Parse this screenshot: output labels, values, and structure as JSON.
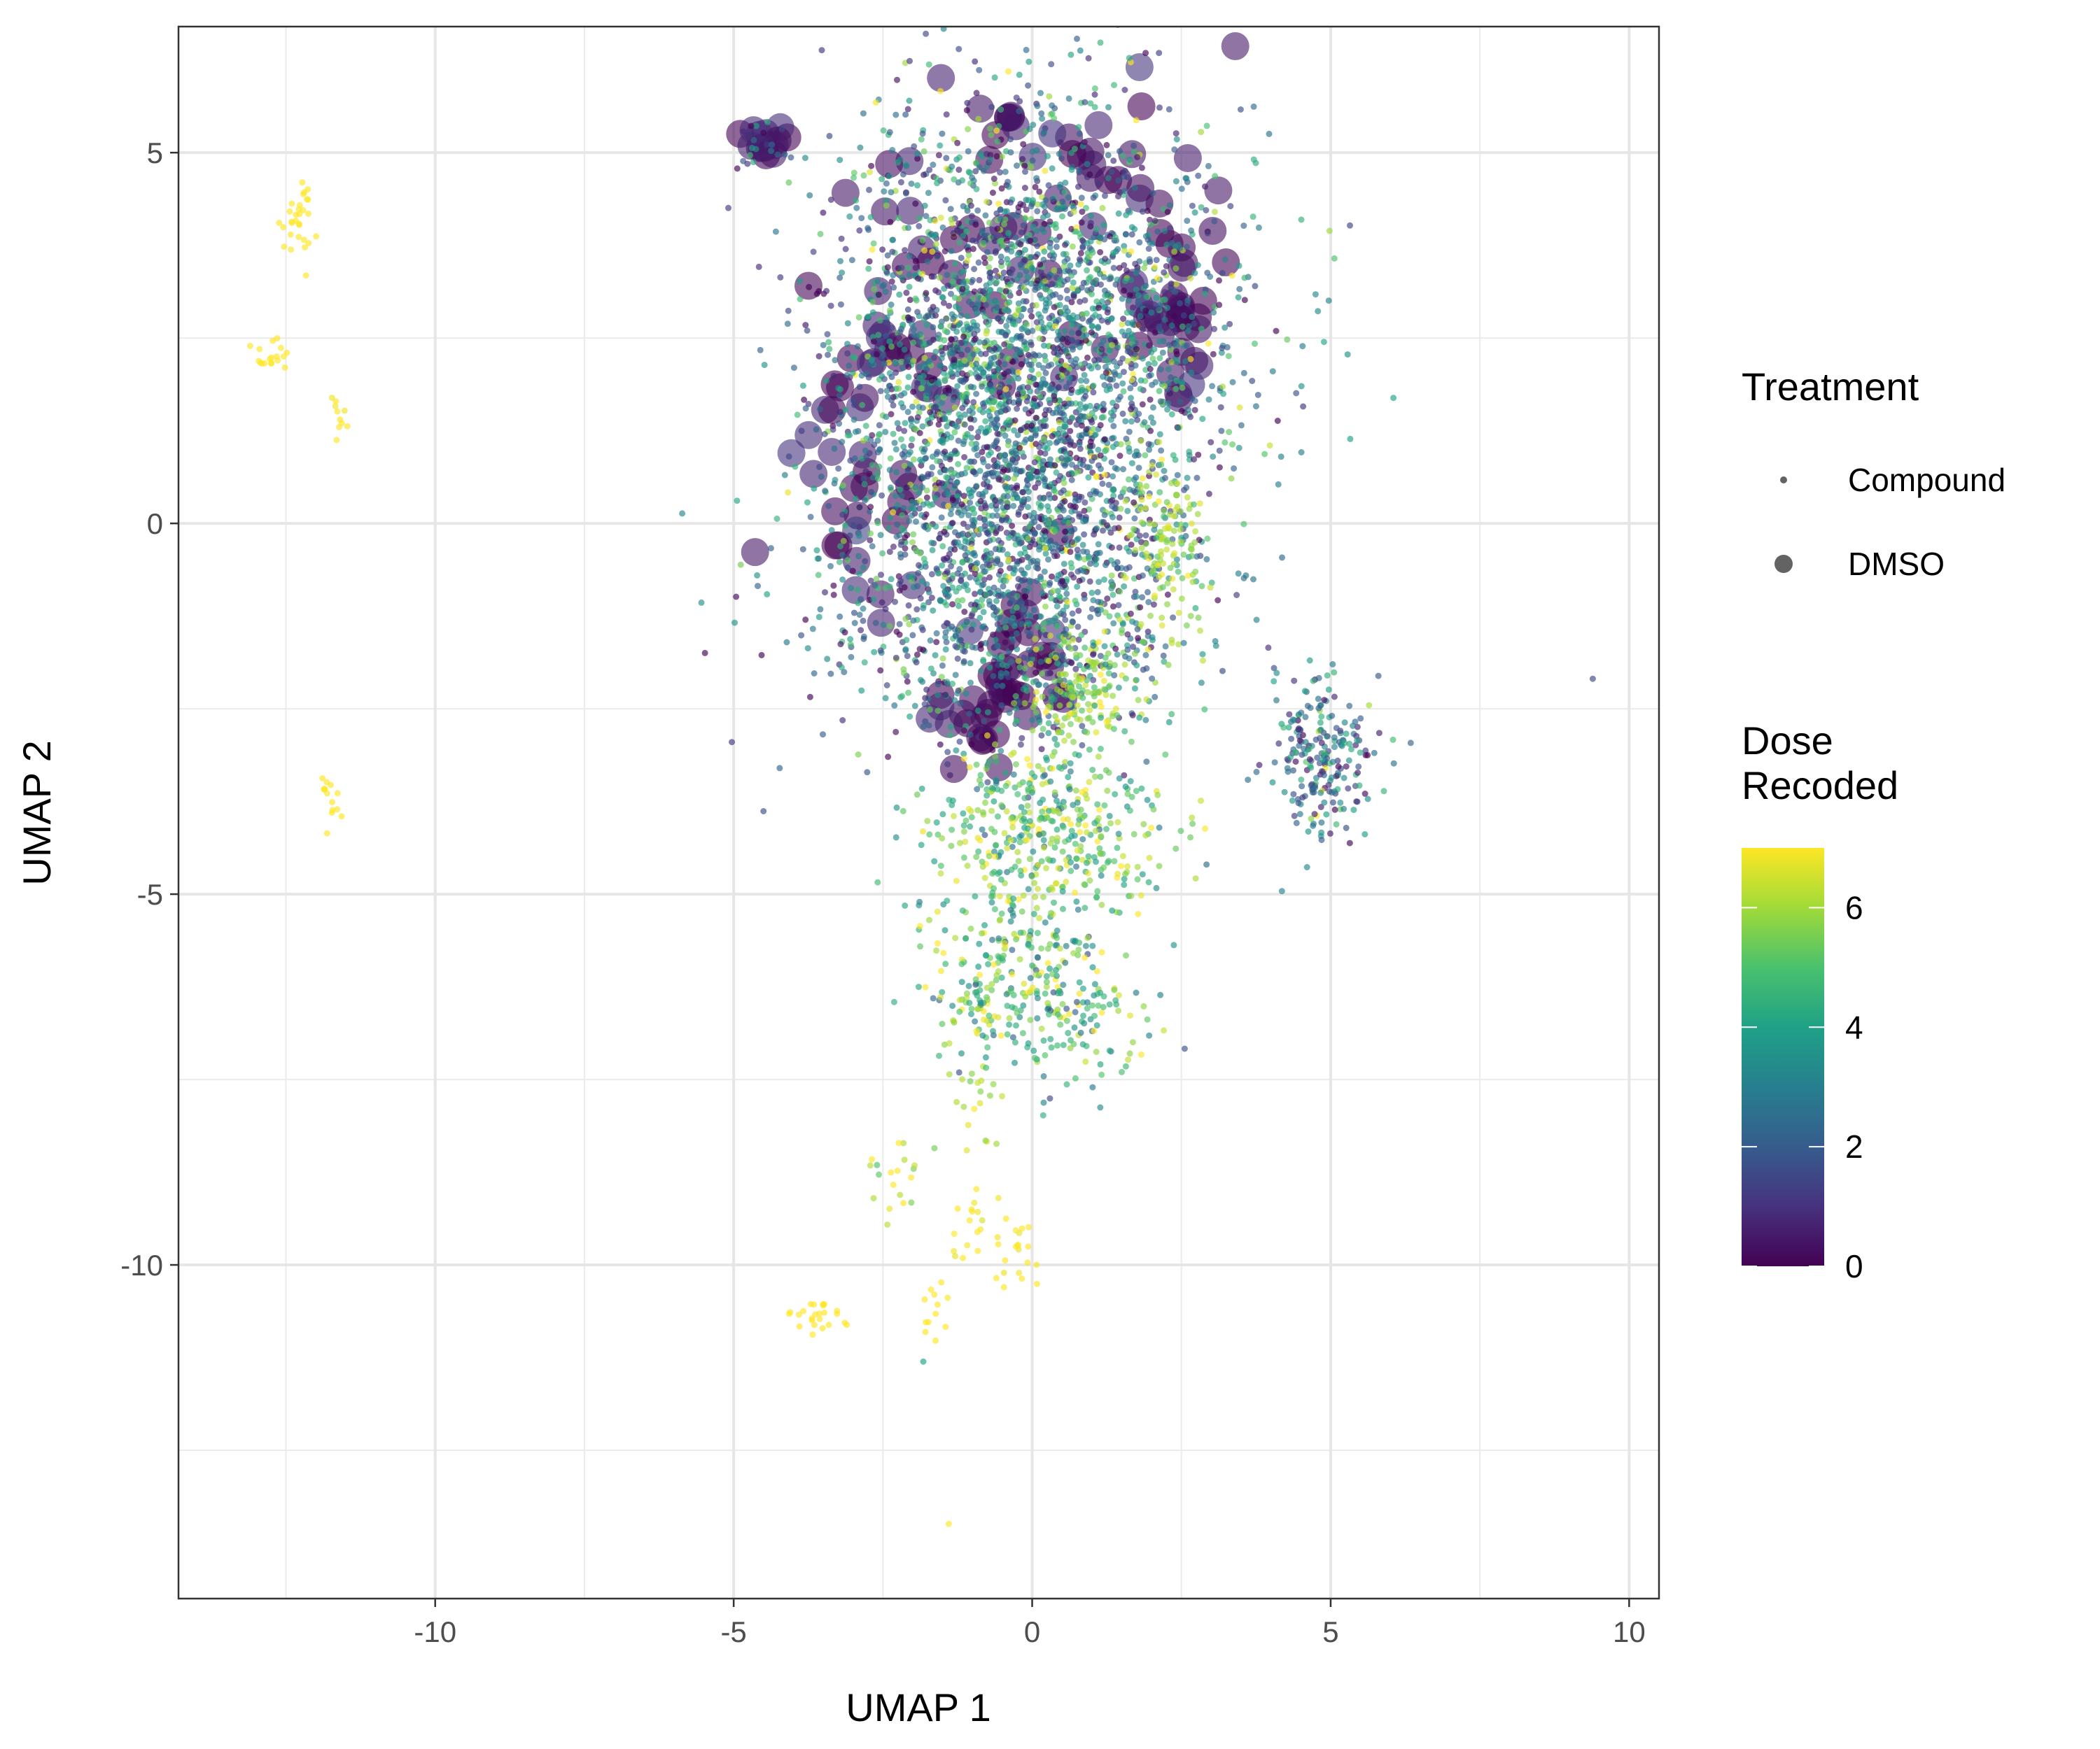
{
  "chart_data": {
    "type": "scatter",
    "xlabel": "UMAP 1",
    "ylabel": "UMAP 2",
    "xlim": [
      -14.3,
      10.5
    ],
    "ylim": [
      -14.5,
      6.7
    ],
    "x_ticks": [
      -10,
      -5,
      0,
      5,
      10
    ],
    "y_ticks": [
      5,
      0,
      -5,
      -10
    ],
    "grid": true,
    "shape_legend": {
      "title": "Treatment",
      "items": [
        {
          "label": "Compound",
          "size": "small"
        },
        {
          "label": "DMSO",
          "size": "large"
        }
      ]
    },
    "color_legend": {
      "title_lines": [
        "Dose",
        "Recoded"
      ],
      "ticks": [
        6,
        4,
        2,
        0
      ],
      "range": [
        0,
        7
      ],
      "palette": [
        "#440154",
        "#46327e",
        "#365c8d",
        "#277f8e",
        "#1fa187",
        "#4ac16d",
        "#a0da39",
        "#fde725"
      ]
    },
    "clusters": [
      {
        "x": -12.3,
        "y": 4.1,
        "sx": 0.15,
        "sy": 0.35,
        "n": 30,
        "dose": 7.2,
        "dose_sd": 0.05,
        "treatment": "Compound"
      },
      {
        "x": -12.8,
        "y": 2.2,
        "sx": 0.25,
        "sy": 0.12,
        "n": 18,
        "dose": 7.2,
        "dose_sd": 0.05,
        "treatment": "Compound"
      },
      {
        "x": -11.6,
        "y": 1.4,
        "sx": 0.08,
        "sy": 0.15,
        "n": 10,
        "dose": 7.0,
        "dose_sd": 0.1,
        "treatment": "Compound"
      },
      {
        "x": -11.8,
        "y": -3.7,
        "sx": 0.1,
        "sy": 0.25,
        "n": 14,
        "dose": 7.2,
        "dose_sd": 0.05,
        "treatment": "Compound"
      },
      {
        "x": -4.5,
        "y": 5.2,
        "sx": 0.2,
        "sy": 0.1,
        "n": 14,
        "dose": 0.4,
        "dose_sd": 0.4,
        "treatment": "DMSO"
      },
      {
        "x": -4.4,
        "y": 5.1,
        "sx": 0.3,
        "sy": 0.15,
        "n": 20,
        "dose": 2.5,
        "dose_sd": 1.5,
        "treatment": "Compound"
      },
      {
        "x": 0,
        "y": 2.5,
        "sx": 1.6,
        "sy": 1.5,
        "n": 2600,
        "dose": 2.8,
        "dose_sd": 1.9,
        "treatment": "Compound"
      },
      {
        "x": -0.5,
        "y": -0.5,
        "sx": 1.5,
        "sy": 1.3,
        "n": 1600,
        "dose": 2.6,
        "dose_sd": 1.8,
        "treatment": "Compound"
      },
      {
        "x": -1.5,
        "y": 3.0,
        "sx": 1.0,
        "sy": 1.2,
        "n": 45,
        "dose": 0.3,
        "dose_sd": 0.3,
        "treatment": "DMSO"
      },
      {
        "x": 1.5,
        "y": 4.2,
        "sx": 0.9,
        "sy": 0.8,
        "n": 35,
        "dose": 0.3,
        "dose_sd": 0.3,
        "treatment": "DMSO"
      },
      {
        "x": 2.4,
        "y": 2.7,
        "sx": 0.4,
        "sy": 0.5,
        "n": 22,
        "dose": 0.4,
        "dose_sd": 0.4,
        "treatment": "DMSO"
      },
      {
        "x": -0.3,
        "y": -2.0,
        "sx": 0.5,
        "sy": 0.9,
        "n": 30,
        "dose": 0.3,
        "dose_sd": 0.3,
        "treatment": "DMSO"
      },
      {
        "x": -3.0,
        "y": 0.2,
        "sx": 0.7,
        "sy": 1.0,
        "n": 30,
        "dose": 0.4,
        "dose_sd": 0.4,
        "treatment": "DMSO"
      },
      {
        "x": -1.0,
        "y": -2.5,
        "sx": 0.4,
        "sy": 0.3,
        "n": 14,
        "dose": 0.3,
        "dose_sd": 0.3,
        "treatment": "DMSO"
      },
      {
        "x": 2.3,
        "y": -0.3,
        "sx": 0.3,
        "sy": 0.6,
        "n": 120,
        "dose": 6.0,
        "dose_sd": 0.5,
        "treatment": "Compound"
      },
      {
        "x": 0.8,
        "y": -2.3,
        "sx": 0.4,
        "sy": 0.4,
        "n": 160,
        "dose": 5.8,
        "dose_sd": 0.7,
        "treatment": "Compound"
      },
      {
        "x": 1.6,
        "y": -1.8,
        "sx": 0.5,
        "sy": 0.15,
        "n": 25,
        "dose": 3.0,
        "dose_sd": 1.5,
        "treatment": "Compound"
      },
      {
        "x": 4.9,
        "y": -3.2,
        "sx": 0.45,
        "sy": 0.5,
        "n": 230,
        "dose": 2.6,
        "dose_sd": 1.6,
        "treatment": "Compound"
      },
      {
        "x": 0.2,
        "y": -4.2,
        "sx": 1.0,
        "sy": 0.6,
        "n": 420,
        "dose": 5.2,
        "dose_sd": 1.2,
        "treatment": "Compound"
      },
      {
        "x": -0.5,
        "y": -6.2,
        "sx": 0.7,
        "sy": 0.6,
        "n": 220,
        "dose": 4.8,
        "dose_sd": 1.5,
        "treatment": "Compound"
      },
      {
        "x": 0.8,
        "y": -6.5,
        "sx": 0.6,
        "sy": 0.6,
        "n": 120,
        "dose": 4.8,
        "dose_sd": 1.5,
        "treatment": "Compound"
      },
      {
        "x": -1.0,
        "y": -7.7,
        "sx": 0.2,
        "sy": 0.3,
        "n": 18,
        "dose": 6.0,
        "dose_sd": 0.5,
        "treatment": "Compound"
      },
      {
        "x": -2.2,
        "y": -8.8,
        "sx": 0.3,
        "sy": 0.35,
        "n": 20,
        "dose": 6.0,
        "dose_sd": 1.0,
        "treatment": "Compound"
      },
      {
        "x": -0.8,
        "y": -9.5,
        "sx": 0.3,
        "sy": 0.3,
        "n": 22,
        "dose": 7.0,
        "dose_sd": 0.2,
        "treatment": "Compound"
      },
      {
        "x": -0.2,
        "y": -9.9,
        "sx": 0.2,
        "sy": 0.3,
        "n": 16,
        "dose": 7.1,
        "dose_sd": 0.1,
        "treatment": "Compound"
      },
      {
        "x": -3.6,
        "y": -10.7,
        "sx": 0.25,
        "sy": 0.15,
        "n": 24,
        "dose": 7.2,
        "dose_sd": 0.05,
        "treatment": "Compound"
      },
      {
        "x": -1.6,
        "y": -10.7,
        "sx": 0.15,
        "sy": 0.2,
        "n": 12,
        "dose": 7.1,
        "dose_sd": 0.1,
        "treatment": "Compound"
      },
      {
        "x": -0.3,
        "y": 5.5,
        "sx": 0.08,
        "sy": 0.08,
        "n": 5,
        "dose": 0.2,
        "dose_sd": 0.2,
        "treatment": "DMSO"
      },
      {
        "x": 9.4,
        "y": -2.1,
        "sx": 0.01,
        "sy": 0.01,
        "n": 1,
        "dose": 1.5,
        "dose_sd": 0.0,
        "treatment": "Compound"
      },
      {
        "x": -1.4,
        "y": -13.5,
        "sx": 0.01,
        "sy": 0.01,
        "n": 1,
        "dose": 7.2,
        "dose_sd": 0.0,
        "treatment": "Compound"
      },
      {
        "x": -1.8,
        "y": -11.3,
        "sx": 0.01,
        "sy": 0.01,
        "n": 1,
        "dose": 4.0,
        "dose_sd": 0.0,
        "treatment": "Compound"
      }
    ]
  }
}
